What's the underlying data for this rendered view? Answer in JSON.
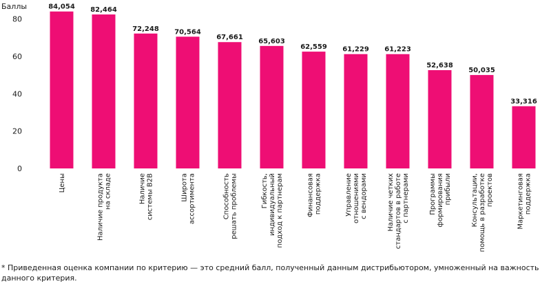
{
  "chart_data": {
    "type": "bar",
    "ylabel": "Баллы",
    "ylim": [
      0,
      88
    ],
    "yticks": [
      0,
      20,
      40,
      60,
      80
    ],
    "grid": false,
    "bar_color": "#ee0e74",
    "categories": [
      [
        "Цены"
      ],
      [
        "Наличие продукта",
        "на складе"
      ],
      [
        "Наличие",
        "системы B2B"
      ],
      [
        "Широта",
        "ассортимента"
      ],
      [
        "Способность",
        "решать проблемы"
      ],
      [
        "Гибкость,",
        "индивидуальный",
        "подход к партнерам"
      ],
      [
        "Финансовая",
        "поддержка"
      ],
      [
        "Управление",
        "отношениями",
        "с вендорами"
      ],
      [
        "Наличие четких",
        "стандартов в работе",
        "с партнерами"
      ],
      [
        "Программы",
        "формирования",
        "прибыли"
      ],
      [
        "Консультации,",
        "помощь в разработке",
        "проектов"
      ],
      [
        "Маркетинговая",
        "поддержка"
      ]
    ],
    "values": [
      84.054,
      82.464,
      72.248,
      70.564,
      67.661,
      65.603,
      62.559,
      61.229,
      61.223,
      52.638,
      50.035,
      33.316
    ],
    "value_labels": [
      "84,054",
      "82,464",
      "72,248",
      "70,564",
      "67,661",
      "65,603",
      "62,559",
      "61,229",
      "61,223",
      "52,638",
      "50,035",
      "33,316"
    ]
  },
  "footnote": "* Приведенная оценка компании по критерию — это средний балл, полученный данным дистрибьютором, умноженный на важность данного критерия."
}
